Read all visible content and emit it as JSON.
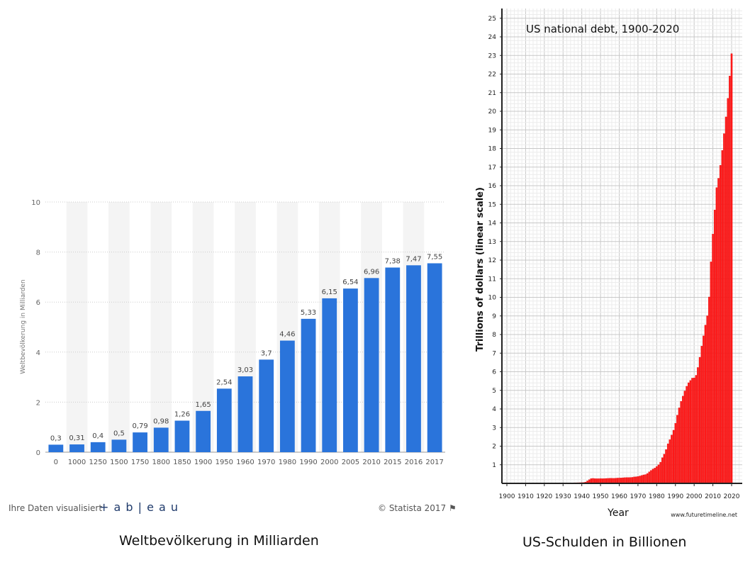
{
  "chart_data": [
    {
      "type": "bar",
      "title": "",
      "caption": "Weltbevölkerung in Milliarden",
      "ylabel": "Weltbevölkerung in Milliarden",
      "xlabel": "",
      "ylim": [
        0,
        10
      ],
      "yticks": [
        "0",
        "2",
        "4",
        "6",
        "8",
        "10"
      ],
      "grid": true,
      "color": "#2a74db",
      "categories": [
        "0",
        "1000",
        "1250",
        "1500",
        "1750",
        "1800",
        "1850",
        "1900",
        "1950",
        "1960",
        "1970",
        "1980",
        "1990",
        "2000",
        "2005",
        "2010",
        "2015",
        "2016",
        "2017"
      ],
      "values": [
        0.3,
        0.31,
        0.4,
        0.5,
        0.79,
        0.98,
        1.26,
        1.65,
        2.54,
        3.03,
        3.7,
        4.46,
        5.33,
        6.15,
        6.54,
        6.96,
        7.38,
        7.47,
        7.55
      ],
      "data_labels": [
        "0,3",
        "0,31",
        "0,4",
        "0,5",
        "0,79",
        "0,98",
        "1,26",
        "1,65",
        "2,54",
        "3,03",
        "3,7",
        "4,46",
        "5,33",
        "6,15",
        "6,54",
        "6,96",
        "7,38",
        "7,47",
        "7,55"
      ],
      "footer_left": "Ihre Daten visualisiert",
      "logo_text": "+ a b | e a u",
      "footer_right": "© Statista 2017"
    },
    {
      "type": "bar",
      "title": "US national debt, 1900-2020",
      "caption": "US-Schulden in Billionen",
      "xlabel": "Year",
      "ylabel": "Trillions of dollars (linear scale)",
      "source": "www.futuretimeline.net",
      "xlim": [
        1900,
        2020
      ],
      "ylim": [
        0,
        25
      ],
      "grid": true,
      "color": "#ff1a1a",
      "xticks": [
        "1900",
        "1910",
        "1920",
        "1930",
        "1940",
        "1950",
        "1960",
        "1970",
        "1980",
        "1990",
        "2000",
        "2010",
        "2020"
      ],
      "yticks": [
        "1",
        "2",
        "3",
        "4",
        "5",
        "6",
        "7",
        "8",
        "9",
        "10",
        "11",
        "12",
        "13",
        "14",
        "15",
        "16",
        "17",
        "18",
        "19",
        "20",
        "21",
        "22",
        "23",
        "24",
        "25"
      ],
      "x_start": 1900,
      "values": [
        0.001,
        0.001,
        0.001,
        0.001,
        0.001,
        0.001,
        0.001,
        0.001,
        0.001,
        0.001,
        0.001,
        0.001,
        0.001,
        0.001,
        0.001,
        0.001,
        0.001,
        0.003,
        0.012,
        0.025,
        0.024,
        0.024,
        0.023,
        0.022,
        0.021,
        0.02,
        0.019,
        0.018,
        0.018,
        0.017,
        0.016,
        0.017,
        0.019,
        0.023,
        0.027,
        0.029,
        0.034,
        0.036,
        0.037,
        0.04,
        0.043,
        0.049,
        0.072,
        0.137,
        0.201,
        0.259,
        0.269,
        0.258,
        0.252,
        0.253,
        0.257,
        0.255,
        0.259,
        0.266,
        0.271,
        0.274,
        0.273,
        0.272,
        0.28,
        0.287,
        0.29,
        0.293,
        0.303,
        0.31,
        0.316,
        0.317,
        0.32,
        0.326,
        0.348,
        0.354,
        0.371,
        0.398,
        0.427,
        0.458,
        0.475,
        0.533,
        0.62,
        0.699,
        0.772,
        0.827,
        0.908,
        0.998,
        1.14,
        1.38,
        1.57,
        1.82,
        2.13,
        2.35,
        2.6,
        2.86,
        3.23,
        3.67,
        4.06,
        4.41,
        4.69,
        4.97,
        5.22,
        5.41,
        5.53,
        5.66,
        5.67,
        5.81,
        6.23,
        6.78,
        7.38,
        7.93,
        8.51,
        9.01,
        10.02,
        11.91,
        13.4,
        14.7,
        15.9,
        16.4,
        17.1,
        17.9,
        18.8,
        19.7,
        20.7,
        21.9,
        23.1
      ]
    }
  ]
}
